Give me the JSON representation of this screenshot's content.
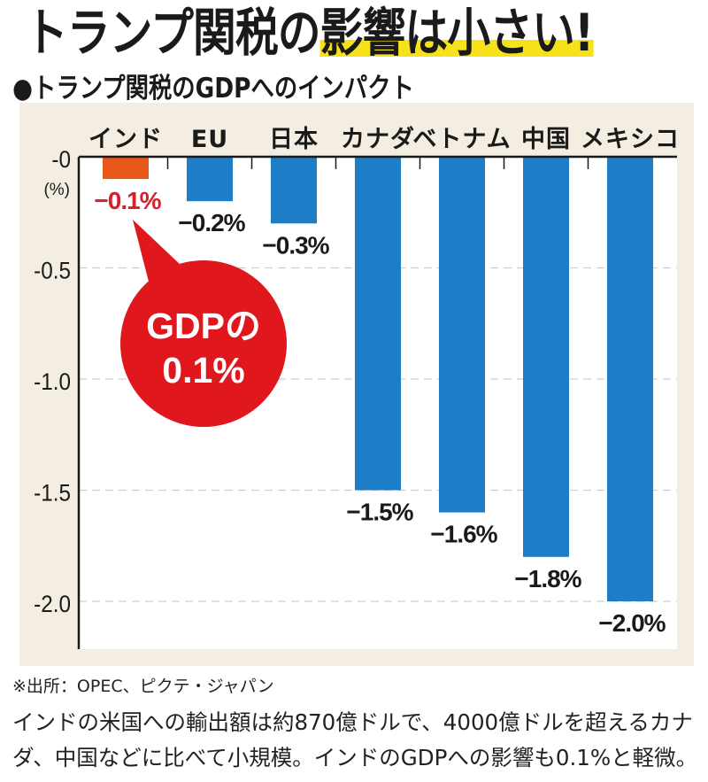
{
  "header": {
    "title_prefix": "トランプ関税の",
    "title_highlight": "影響は小さい!",
    "subtitle": "●トランプ関税のGDPへのインパクト"
  },
  "chart_data": {
    "type": "bar",
    "title": "トランプ関税のGDPへのインパクト",
    "categories": [
      "インド",
      "EU",
      "日本",
      "カナダ",
      "ベトナム",
      "中国",
      "メキシコ"
    ],
    "values": [
      -0.1,
      -0.2,
      -0.3,
      -1.5,
      -1.6,
      -1.8,
      -2.0
    ],
    "data_labels": [
      "−0.1%",
      "−0.2%",
      "−0.3%",
      "−1.5%",
      "−1.6%",
      "−1.8%",
      "−2.0%"
    ],
    "highlight_index": 0,
    "colors": {
      "default": "#1d7dc6",
      "highlight": "#e8581a",
      "highlight_label": "#d8202a",
      "callout": "#e0181e",
      "panel": "#f3eee1"
    },
    "ylabel": "(%)",
    "yticks": [
      0,
      -0.5,
      -1.0,
      -1.5,
      -2.0
    ],
    "ytick_labels": [
      "-0",
      "-0.5",
      "-1.0",
      "-1.5",
      "-2.0"
    ],
    "ylim": [
      -2.2,
      0
    ],
    "grid": true,
    "xaxis_position": "top",
    "annotation": {
      "line1": "GDPの",
      "line2": "0.1%"
    }
  },
  "footer": {
    "source": "※出所：OPEC、ピクテ・ジャパン",
    "note": "インドの米国への輸出額は約870億ドルで、4000億ドルを超えるカナダ、中国などに比べて小規模。インドのGDPへの影響も0.1%と軽微。"
  }
}
